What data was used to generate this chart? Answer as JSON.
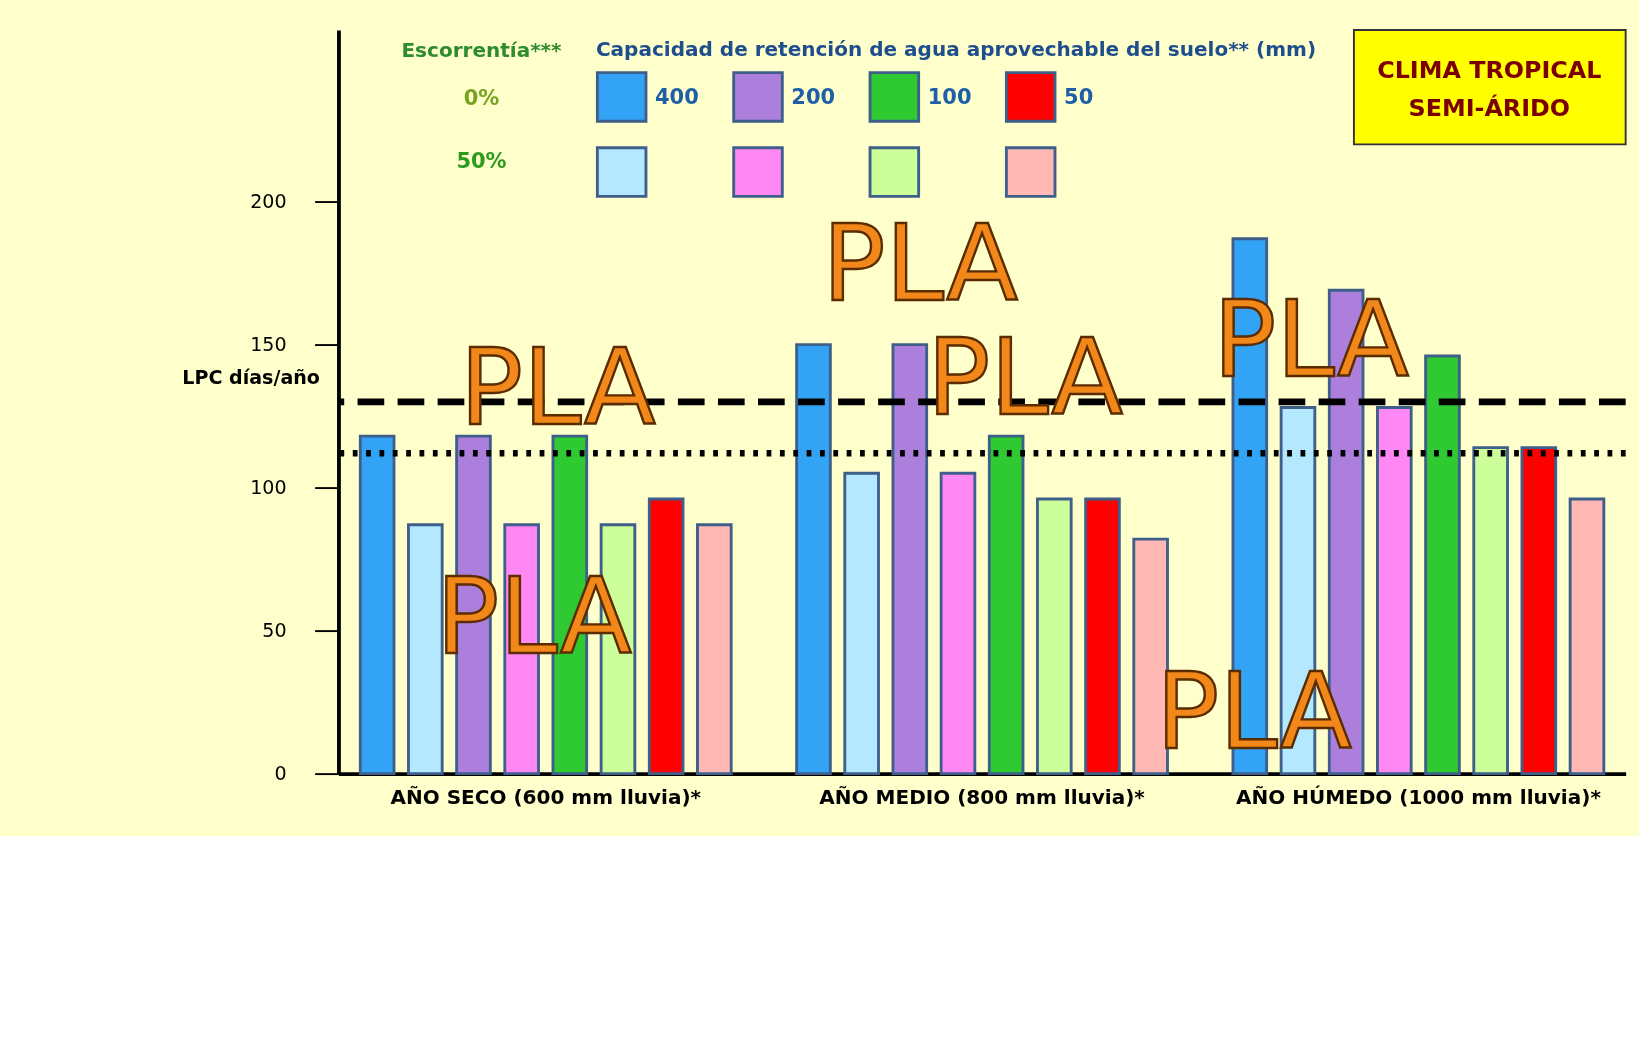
{
  "chart_data": {
    "type": "bar",
    "title": "CLIMA  TROPICAL\nSEMI-ÁRIDO",
    "ylabel": "LPC días/año",
    "legend_title": "Capacidad de retención de agua aprovechable del suelo** (mm)",
    "categories": [
      "AÑO  SECO (600 mm  lluvia)*",
      "AÑO  MEDIO (800 mm  lluvia)*",
      "AÑO  HÚMEDO (1000 mm  lluvia)*"
    ],
    "series": [
      {
        "name": "400",
        "color": "#33a3f5",
        "values": [
          118,
          150,
          187
        ]
      },
      {
        "color": "#b3e8ff",
        "values": [
          87,
          105,
          128
        ]
      },
      {
        "name": "200",
        "color": "#ad7fdc",
        "values": [
          118,
          150,
          169
        ]
      },
      {
        "color": "#ff88f5",
        "values": [
          87,
          105,
          128
        ]
      },
      {
        "name": "100",
        "color": "#2fca32",
        "values": [
          118,
          118,
          146
        ]
      },
      {
        "color": "#ccff99",
        "values": [
          87,
          96,
          114
        ]
      },
      {
        "name": "50",
        "color": "#ff0000",
        "values": [
          96,
          96,
          114
        ]
      },
      {
        "color": "#ffb8b3",
        "values": [
          87,
          82,
          96
        ]
      }
    ],
    "ylim": [
      0,
      260
    ],
    "yticks": [
      0,
      50,
      100,
      150,
      200
    ],
    "grid": false,
    "legend": "top",
    "ref_lines": [
      {
        "axis": "y",
        "value": 130,
        "line_style": "dashed"
      },
      {
        "axis": "y",
        "value": 112,
        "line_style": "dotted"
      }
    ],
    "annotations": [
      "Escorrentía***",
      "0%",
      "50%",
      "PLA",
      "PLA",
      "PLA",
      "PLA",
      "PLA",
      "PLA"
    ]
  }
}
